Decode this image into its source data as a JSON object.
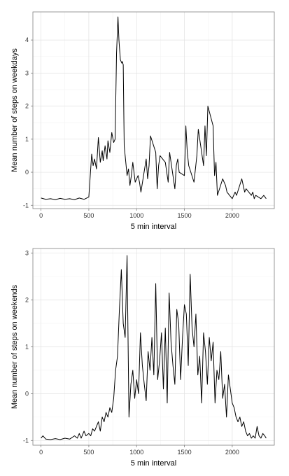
{
  "chart_data": [
    {
      "type": "line",
      "xlabel": "5 min interval",
      "ylabel": "Mean number of steps on weekdays",
      "xlim": [
        -85,
        2440
      ],
      "ylim": [
        -1.1,
        4.85
      ],
      "xticks": [
        0,
        500,
        1000,
        1500,
        2000
      ],
      "yticks": [
        -1,
        0,
        1,
        2,
        3,
        4
      ],
      "grid": true,
      "x": [
        0,
        50,
        100,
        150,
        200,
        250,
        300,
        350,
        400,
        450,
        500,
        530,
        545,
        560,
        580,
        600,
        620,
        640,
        650,
        670,
        690,
        700,
        720,
        740,
        760,
        775,
        790,
        805,
        815,
        830,
        845,
        850,
        860,
        870,
        890,
        900,
        915,
        930,
        945,
        960,
        985,
        1000,
        1015,
        1030,
        1045,
        1100,
        1115,
        1130,
        1145,
        1200,
        1215,
        1230,
        1245,
        1300,
        1330,
        1345,
        1400,
        1415,
        1430,
        1445,
        1500,
        1515,
        1530,
        1545,
        1600,
        1630,
        1645,
        1700,
        1715,
        1730,
        1745,
        1800,
        1815,
        1830,
        1845,
        1900,
        1930,
        1945,
        2000,
        2030,
        2045,
        2100,
        2130,
        2145,
        2200,
        2215,
        2230,
        2245,
        2300,
        2330,
        2355
      ],
      "y": [
        -0.78,
        -0.82,
        -0.8,
        -0.83,
        -0.79,
        -0.82,
        -0.8,
        -0.83,
        -0.78,
        -0.82,
        -0.75,
        0.55,
        0.2,
        0.4,
        0.1,
        1.05,
        0.3,
        0.65,
        0.35,
        0.8,
        0.4,
        0.95,
        0.6,
        1.2,
        0.9,
        1.0,
        3.6,
        4.7,
        4.0,
        3.4,
        3.3,
        3.35,
        3.25,
        0.8,
        0.2,
        -0.1,
        0.1,
        -0.4,
        -0.1,
        0.3,
        -0.3,
        -0.2,
        -0.1,
        -0.3,
        -0.6,
        0.4,
        -0.2,
        0.2,
        1.1,
        0.6,
        -0.5,
        0.2,
        0.5,
        0.3,
        -0.3,
        0.6,
        -0.5,
        0.2,
        0.4,
        0.0,
        -0.1,
        1.4,
        0.6,
        0.2,
        -0.3,
        0.5,
        1.3,
        0.2,
        1.4,
        0.5,
        2.0,
        1.4,
        -0.1,
        0.3,
        -0.7,
        -0.2,
        -0.4,
        -0.6,
        -0.8,
        -0.6,
        -0.7,
        -0.2,
        -0.6,
        -0.5,
        -0.7,
        -0.6,
        -0.8,
        -0.7,
        -0.8,
        -0.7,
        -0.8
      ]
    },
    {
      "type": "line",
      "xlabel": "5 min interval",
      "ylabel": "Mean number of steps on weekends",
      "xlim": [
        -85,
        2440
      ],
      "ylim": [
        -1.1,
        3.1
      ],
      "xticks": [
        0,
        500,
        1000,
        1500,
        2000
      ],
      "yticks": [
        -1,
        0,
        1,
        2,
        3
      ],
      "grid": true,
      "x": [
        0,
        20,
        50,
        100,
        150,
        200,
        250,
        300,
        350,
        380,
        400,
        420,
        450,
        470,
        500,
        520,
        540,
        560,
        580,
        600,
        620,
        640,
        660,
        680,
        700,
        720,
        740,
        760,
        780,
        800,
        820,
        840,
        860,
        880,
        900,
        920,
        940,
        960,
        980,
        1000,
        1020,
        1040,
        1060,
        1080,
        1100,
        1120,
        1140,
        1160,
        1180,
        1200,
        1220,
        1240,
        1260,
        1280,
        1300,
        1320,
        1340,
        1360,
        1380,
        1400,
        1420,
        1440,
        1460,
        1480,
        1500,
        1520,
        1540,
        1560,
        1580,
        1600,
        1620,
        1640,
        1660,
        1680,
        1700,
        1720,
        1740,
        1760,
        1780,
        1800,
        1820,
        1840,
        1860,
        1880,
        1900,
        1920,
        1940,
        1960,
        1980,
        2000,
        2020,
        2040,
        2060,
        2080,
        2100,
        2120,
        2140,
        2160,
        2180,
        2200,
        2220,
        2240,
        2260,
        2280,
        2300,
        2320,
        2340,
        2355
      ],
      "y": [
        -0.95,
        -0.9,
        -0.97,
        -0.98,
        -0.96,
        -0.98,
        -0.95,
        -0.97,
        -0.9,
        -0.95,
        -0.85,
        -0.95,
        -0.8,
        -0.9,
        -0.85,
        -0.9,
        -0.75,
        -0.8,
        -0.7,
        -0.6,
        -0.8,
        -0.5,
        -0.6,
        -0.4,
        -0.5,
        -0.3,
        -0.4,
        -0.1,
        0.5,
        0.8,
        1.8,
        2.65,
        1.5,
        1.2,
        2.95,
        -0.5,
        0.2,
        0.5,
        -0.1,
        0.3,
        0.0,
        1.3,
        0.6,
        0.2,
        -0.15,
        0.9,
        0.5,
        1.2,
        0.4,
        2.35,
        0.3,
        0.7,
        1.3,
        0.1,
        1.4,
        -0.2,
        2.15,
        1.1,
        0.6,
        0.2,
        1.8,
        1.5,
        0.3,
        1.2,
        1.9,
        1.7,
        0.6,
        2.55,
        1.4,
        1.0,
        1.7,
        0.4,
        0.8,
        -0.2,
        1.3,
        0.9,
        0.2,
        1.2,
        0.7,
        1.1,
        -0.2,
        0.5,
        0.3,
        0.9,
        -0.1,
        0.2,
        -0.5,
        0.4,
        0.1,
        -0.2,
        -0.3,
        -0.5,
        -0.6,
        -0.5,
        -0.7,
        -0.6,
        -0.8,
        -0.9,
        -0.85,
        -0.95,
        -0.9,
        -0.95,
        -0.7,
        -0.9,
        -0.95,
        -0.85,
        -0.9,
        -0.95
      ]
    }
  ]
}
